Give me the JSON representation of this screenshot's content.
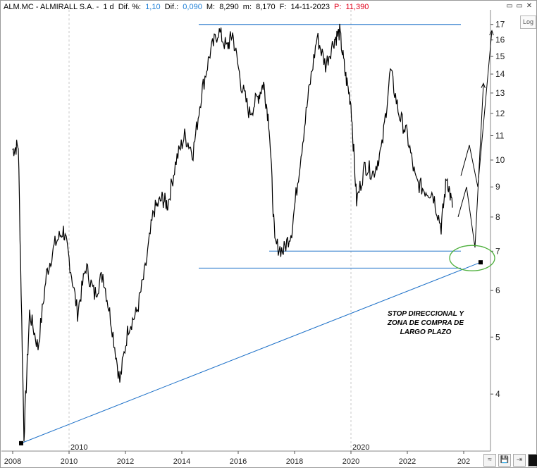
{
  "header": {
    "symbol": "ALM.MC - ALMIRALL S.A. -",
    "period": "1 d",
    "dif_pct_label": "Dif. %:",
    "dif_pct_value": "1,10",
    "dif_label": "Dif.:",
    "dif_value": "0,090",
    "max_label": "M:",
    "max_value": "8,290",
    "min_label": "m:",
    "min_value": "8,170",
    "date_label": "F:",
    "date_value": "14-11-2023",
    "price_label": "P:",
    "price_value": "11,390"
  },
  "window_buttons": [
    "▭",
    "▭",
    "✕"
  ],
  "log_button": "Log",
  "bottom_tools": [
    "≈",
    "💾",
    "⇥",
    ""
  ],
  "annotation": [
    "STOP DIRECCIONAL Y",
    "ZONA DE COMPRA DE",
    "LARGO PLAZO"
  ],
  "colors": {
    "price": "#000000",
    "support": "#1c70c8",
    "ellipse": "#4caf3a",
    "grid": "#c8c8c8"
  },
  "chart_data": {
    "type": "line",
    "log_scale": true,
    "ylim": [
      3.2,
      18
    ],
    "y_ticks": [
      4,
      5,
      6,
      7,
      8,
      9,
      10,
      11,
      12,
      13,
      14,
      15,
      16,
      17
    ],
    "x_ticks": [
      "2008",
      "2010",
      "2012",
      "2014",
      "2016",
      "2018",
      "2020",
      "2022",
      "202"
    ],
    "x_markers": [
      "2010",
      "2020"
    ],
    "series": [
      {
        "values": [
          [
            2008.0,
            10.4
          ],
          [
            2008.2,
            10.6
          ],
          [
            2008.4,
            3.4
          ],
          [
            2008.6,
            5.5
          ],
          [
            2008.9,
            4.8
          ],
          [
            2009.2,
            6.4
          ],
          [
            2009.5,
            7.2
          ],
          [
            2009.8,
            7.6
          ],
          [
            2010.0,
            6.8
          ],
          [
            2010.3,
            5.5
          ],
          [
            2010.6,
            6.6
          ],
          [
            2010.9,
            5.9
          ],
          [
            2011.2,
            6.4
          ],
          [
            2011.5,
            5.3
          ],
          [
            2011.8,
            4.2
          ],
          [
            2012.1,
            5.2
          ],
          [
            2012.4,
            5.5
          ],
          [
            2012.7,
            6.5
          ],
          [
            2013.0,
            8.2
          ],
          [
            2013.3,
            8.6
          ],
          [
            2013.5,
            8.4
          ],
          [
            2013.8,
            10.0
          ],
          [
            2014.1,
            11.0
          ],
          [
            2014.4,
            10.3
          ],
          [
            2014.7,
            13.0
          ],
          [
            2015.0,
            15.2
          ],
          [
            2015.3,
            16.6
          ],
          [
            2015.6,
            15.5
          ],
          [
            2015.8,
            16.4
          ],
          [
            2016.1,
            13.5
          ],
          [
            2016.4,
            12.0
          ],
          [
            2016.7,
            12.8
          ],
          [
            2016.9,
            13.5
          ],
          [
            2017.1,
            11.5
          ],
          [
            2017.3,
            7.2
          ],
          [
            2017.6,
            7.0
          ],
          [
            2017.9,
            7.6
          ],
          [
            2018.2,
            10.0
          ],
          [
            2018.5,
            13.0
          ],
          [
            2018.8,
            16.2
          ],
          [
            2019.1,
            14.5
          ],
          [
            2019.4,
            16.0
          ],
          [
            2019.6,
            16.5
          ],
          [
            2019.8,
            14.0
          ],
          [
            2020.0,
            12.5
          ],
          [
            2020.2,
            8.5
          ],
          [
            2020.5,
            9.8
          ],
          [
            2020.8,
            9.5
          ],
          [
            2021.1,
            10.5
          ],
          [
            2021.4,
            14.2
          ],
          [
            2021.7,
            12.0
          ],
          [
            2022.0,
            11.0
          ],
          [
            2022.3,
            9.2
          ],
          [
            2022.6,
            8.9
          ],
          [
            2022.9,
            8.8
          ],
          [
            2023.2,
            7.7
          ],
          [
            2023.4,
            9.4
          ],
          [
            2023.6,
            8.3
          ]
        ]
      }
    ],
    "lines": [
      {
        "kind": "support",
        "from": [
          2008.3,
          3.3
        ],
        "to": [
          2024.6,
          6.7
        ]
      },
      {
        "kind": "horizontal",
        "from": [
          2014.6,
          17.0
        ],
        "to": [
          2023.9,
          17.0
        ]
      },
      {
        "kind": "horizontal",
        "from": [
          2017.1,
          7.0
        ],
        "to": [
          2023.9,
          7.0
        ]
      },
      {
        "kind": "horizontal",
        "from": [
          2014.6,
          6.55
        ],
        "to": [
          2023.9,
          6.55
        ]
      }
    ],
    "projection": [
      [
        2023.8,
        8.0
      ],
      [
        2024.1,
        9.0
      ],
      [
        2024.4,
        7.1
      ],
      [
        2024.7,
        13.5
      ]
    ],
    "projection_alt": [
      [
        2023.9,
        9.4
      ],
      [
        2024.2,
        10.6
      ],
      [
        2024.5,
        9.0
      ],
      [
        2025.0,
        16.6
      ]
    ],
    "marker": [
      2024.6,
      6.7
    ]
  }
}
